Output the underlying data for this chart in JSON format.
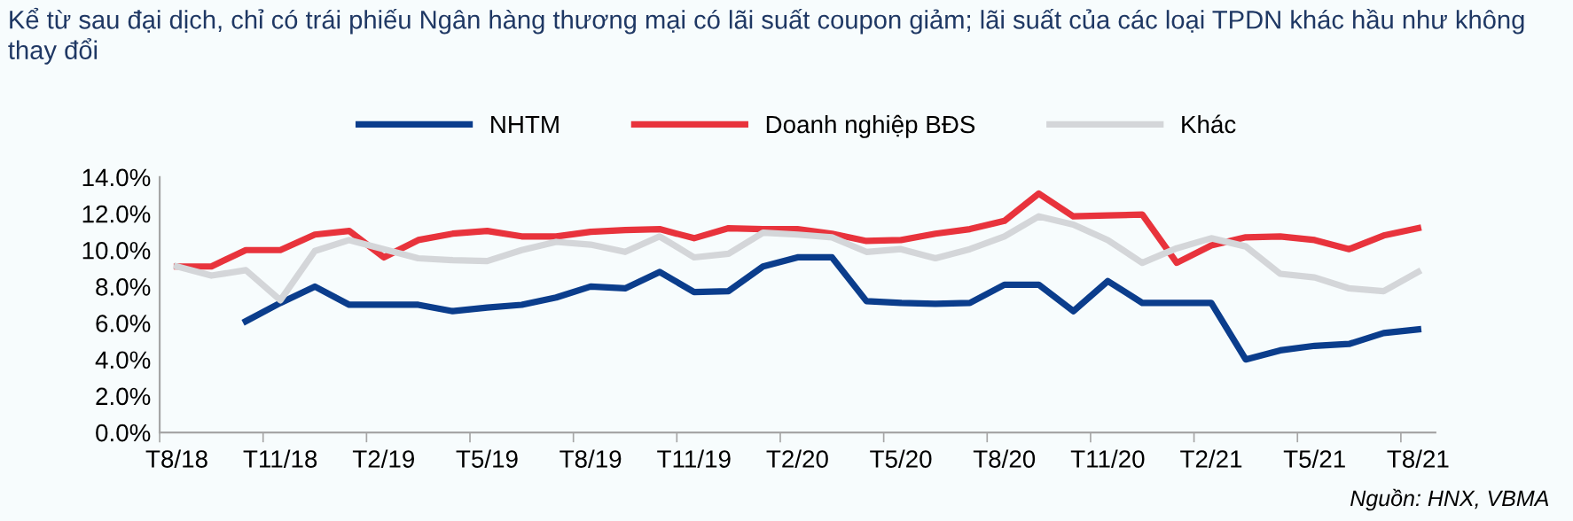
{
  "chart_data": {
    "type": "line",
    "title": "Kể từ sau đại dịch, chỉ có trái phiếu Ngân hàng thương mại có lãi suất coupon giảm; lãi suất của các loại TPDN khác hầu như không thay đổi",
    "categories": [
      "T8/18",
      null,
      null,
      "T11/18",
      null,
      null,
      "T2/19",
      null,
      null,
      "T5/19",
      null,
      null,
      "T8/19",
      null,
      null,
      "T11/19",
      null,
      null,
      "T2/20",
      null,
      null,
      "T5/20",
      null,
      null,
      "T8/20",
      null,
      null,
      "T11/20",
      null,
      null,
      "T2/21",
      null,
      null,
      "T5/21",
      null,
      null,
      "T8/21"
    ],
    "series": [
      {
        "name": "NHTM",
        "color": "#0b3d8c",
        "values": [
          null,
          null,
          6.1,
          7.1,
          8.0,
          7.0,
          7.0,
          7.0,
          6.65,
          6.85,
          7.0,
          7.4,
          8.0,
          7.9,
          8.8,
          7.7,
          7.75,
          9.1,
          9.6,
          9.6,
          7.2,
          7.1,
          7.05,
          7.1,
          8.1,
          8.1,
          6.65,
          8.3,
          7.1,
          7.1,
          7.1,
          4.0,
          4.5,
          4.75,
          4.85,
          5.45,
          5.65
        ]
      },
      {
        "name": "Doanh nghiệp BĐS",
        "color": "#e8333c",
        "values": [
          9.1,
          9.1,
          10.0,
          10.0,
          10.85,
          11.05,
          9.6,
          10.55,
          10.9,
          11.05,
          10.75,
          10.75,
          11.0,
          11.1,
          11.15,
          10.65,
          11.2,
          11.15,
          11.15,
          10.9,
          10.5,
          10.55,
          10.9,
          11.15,
          11.6,
          13.1,
          11.85,
          11.9,
          11.95,
          9.3,
          10.25,
          10.7,
          10.75,
          10.55,
          10.05,
          10.8,
          11.2
        ]
      },
      {
        "name": "Khác",
        "color": "#d4d6d9",
        "values": [
          9.1,
          8.6,
          8.9,
          7.25,
          9.95,
          10.55,
          10.05,
          9.55,
          9.45,
          9.4,
          10.0,
          10.45,
          10.3,
          9.9,
          10.75,
          9.6,
          9.8,
          10.95,
          10.85,
          10.7,
          9.9,
          10.05,
          9.55,
          10.05,
          10.75,
          11.85,
          11.4,
          10.55,
          9.3,
          10.1,
          10.65,
          10.2,
          8.7,
          8.5,
          7.9,
          7.75,
          8.8
        ]
      }
    ],
    "ylim": [
      0,
      14
    ],
    "yticks": [
      {
        "value": 0,
        "label": "0.0%"
      },
      {
        "value": 2,
        "label": "2.0%"
      },
      {
        "value": 4,
        "label": "4.0%"
      },
      {
        "value": 6,
        "label": "6.0%"
      },
      {
        "value": 8,
        "label": "8.0%"
      },
      {
        "value": 10,
        "label": "10.0%"
      },
      {
        "value": 12,
        "label": "12.0%"
      },
      {
        "value": 14,
        "label": "14.0%"
      }
    ],
    "grid": false,
    "legend": "top",
    "marker": "none",
    "line_style": "solid",
    "annotations": [
      "Nguồn: HNX, VBMA"
    ]
  }
}
